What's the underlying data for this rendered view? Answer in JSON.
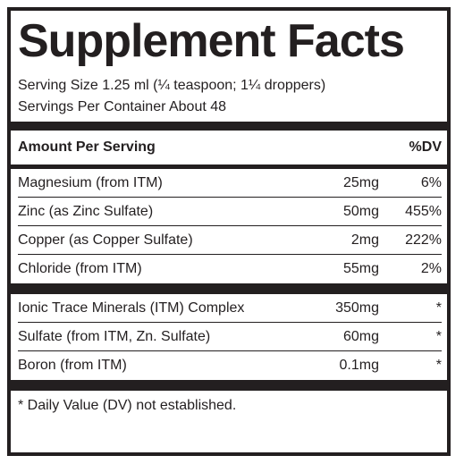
{
  "title": "Supplement Facts",
  "serving_size": "Serving Size 1.25 ml (¼ teaspoon; 1¼ droppers)",
  "servings_per_container": "Servings Per Container About 48",
  "header": {
    "amount": "Amount Per Serving",
    "dv": "%DV"
  },
  "section1": [
    {
      "name": "Magnesium (from ITM)",
      "amount": "25mg",
      "dv": "6%"
    },
    {
      "name": "Zinc (as Zinc Sulfate)",
      "amount": "50mg",
      "dv": "455%"
    },
    {
      "name": "Copper (as Copper Sulfate)",
      "amount": "2mg",
      "dv": "222%"
    },
    {
      "name": "Chloride (from ITM)",
      "amount": "55mg",
      "dv": "2%"
    }
  ],
  "section2": [
    {
      "name": "Ionic Trace Minerals (ITM) Complex",
      "amount": "350mg",
      "dv": "*"
    },
    {
      "name": "Sulfate (from ITM, Zn. Sulfate)",
      "amount": "60mg",
      "dv": "*"
    },
    {
      "name": "Boron (from ITM)",
      "amount": "0.1mg",
      "dv": "*"
    }
  ],
  "footnote": "* Daily Value (DV) not established."
}
